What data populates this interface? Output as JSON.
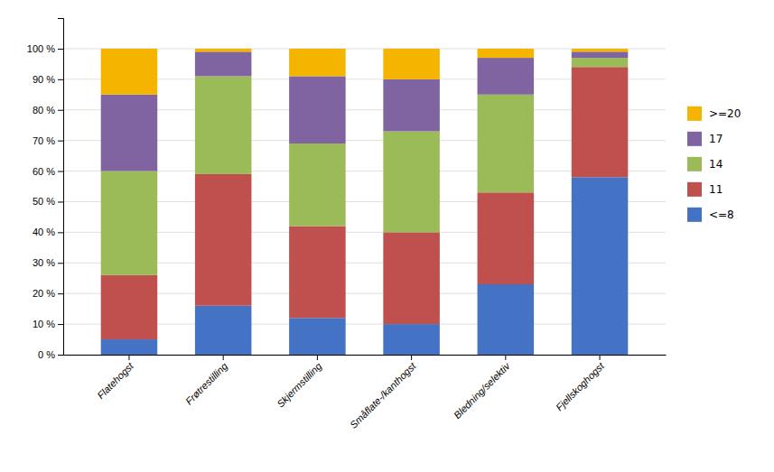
{
  "chart_data": {
    "type": "bar",
    "stacked": true,
    "categories": [
      "Flatehogst",
      "Frøtrestilling",
      "Skjermstilling",
      "Småflate-/kanthogst",
      "Bledning/selektiv",
      "Fjellskoghogst"
    ],
    "series": [
      {
        "name": "<=8",
        "color": "#4472C4",
        "values": [
          5,
          16,
          12,
          10,
          23,
          58
        ]
      },
      {
        "name": "11",
        "color": "#C0504D",
        "values": [
          21,
          43,
          30,
          30,
          30,
          36
        ]
      },
      {
        "name": "14",
        "color": "#9BBB59",
        "values": [
          34,
          32,
          27,
          33,
          32,
          3
        ]
      },
      {
        "name": "17",
        "color": "#8064A2",
        "values": [
          25,
          8,
          22,
          17,
          12,
          2
        ]
      },
      {
        "name": ">=20",
        "color": "#F4B400",
        "values": [
          15,
          1,
          9,
          10,
          3,
          1
        ]
      }
    ],
    "ylim": [
      0,
      110
    ],
    "yticks": [
      {
        "value": 0,
        "label": "0 %"
      },
      {
        "value": 10,
        "label": "10 %"
      },
      {
        "value": 20,
        "label": "20 %"
      },
      {
        "value": 30,
        "label": "30 %"
      },
      {
        "value": 40,
        "label": "40 %"
      },
      {
        "value": 50,
        "label": "50 %"
      },
      {
        "value": 60,
        "label": "60 %"
      },
      {
        "value": 70,
        "label": "70 %"
      },
      {
        "value": 80,
        "label": "80 %"
      },
      {
        "value": 90,
        "label": "90 %"
      },
      {
        "value": 100,
        "label": "100 %"
      }
    ],
    "grid": true,
    "legend": "right"
  }
}
